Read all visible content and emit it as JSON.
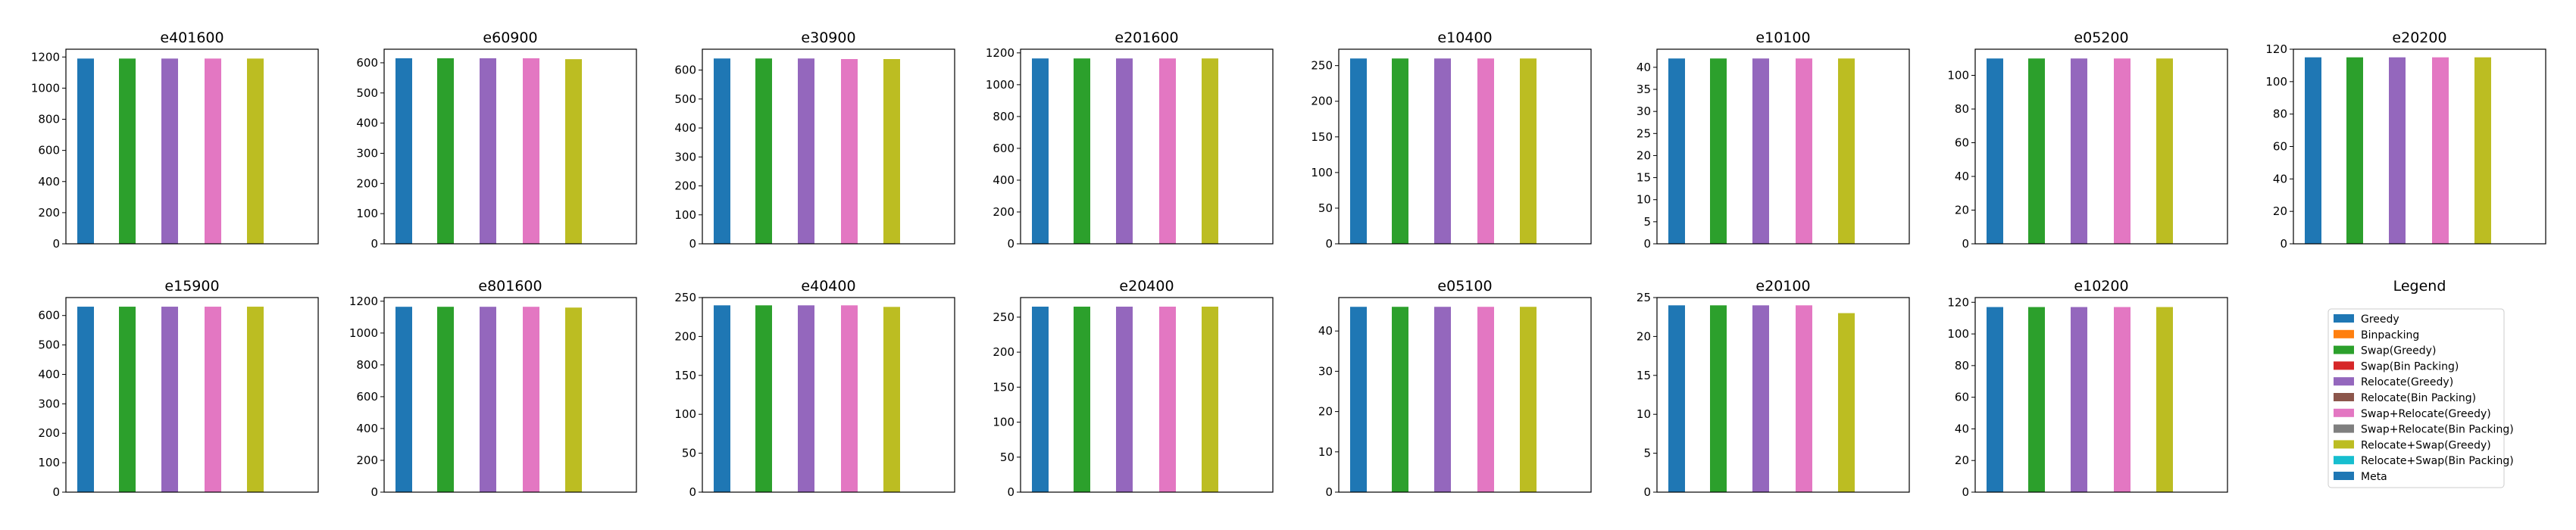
{
  "colors": {
    "Greedy": "#1f77b4",
    "Binpacking": "#ff7f0e",
    "Swap(Greedy)": "#2ca02c",
    "Swap(Bin Packing)": "#d62728",
    "Relocate(Greedy)": "#9467bd",
    "Relocate(Bin Packing)": "#8c564b",
    "Swap+Relocate(Greedy)": "#e377c2",
    "Swap+Relocate(Bin Packing)": "#7f7f7f",
    "Relocate+Swap(Greedy)": "#bcbd22",
    "Relocate+Swap(Bin Packing)": "#17becf",
    "Meta": "#1f77b4"
  },
  "legend": {
    "title": "Legend",
    "entries": [
      "Greedy",
      "Binpacking",
      "Swap(Greedy)",
      "Swap(Bin Packing)",
      "Relocate(Greedy)",
      "Relocate(Bin Packing)",
      "Swap+Relocate(Greedy)",
      "Swap+Relocate(Bin Packing)",
      "Relocate+Swap(Greedy)",
      "Relocate+Swap(Bin Packing)",
      "Meta"
    ]
  },
  "chart_data": [
    {
      "type": "bar",
      "title": "e401600",
      "categories": [
        "Greedy",
        "Swap(Greedy)",
        "Relocate(Greedy)",
        "Swap+Relocate(Greedy)",
        "Relocate+Swap(Greedy)"
      ],
      "values": [
        1190,
        1190,
        1190,
        1190,
        1190
      ],
      "ylim": [
        0,
        1250
      ],
      "yticks": [
        0,
        200,
        400,
        600,
        800,
        1000,
        1200
      ]
    },
    {
      "type": "bar",
      "title": "e60900",
      "categories": [
        "Greedy",
        "Swap(Greedy)",
        "Relocate(Greedy)",
        "Swap+Relocate(Greedy)",
        "Relocate+Swap(Greedy)"
      ],
      "values": [
        615,
        615,
        615,
        615,
        612
      ],
      "ylim": [
        0,
        645
      ],
      "yticks": [
        0,
        100,
        200,
        300,
        400,
        500,
        600
      ]
    },
    {
      "type": "bar",
      "title": "e30900",
      "categories": [
        "Greedy",
        "Swap(Greedy)",
        "Relocate(Greedy)",
        "Swap+Relocate(Greedy)",
        "Relocate+Swap(Greedy)"
      ],
      "values": [
        640,
        640,
        640,
        638,
        638
      ],
      "ylim": [
        0,
        672
      ],
      "yticks": [
        0,
        100,
        200,
        300,
        400,
        500,
        600
      ]
    },
    {
      "type": "bar",
      "title": "e201600",
      "categories": [
        "Greedy",
        "Swap(Greedy)",
        "Relocate(Greedy)",
        "Swap+Relocate(Greedy)",
        "Relocate+Swap(Greedy)"
      ],
      "values": [
        1165,
        1165,
        1165,
        1165,
        1165
      ],
      "ylim": [
        0,
        1223
      ],
      "yticks": [
        0,
        200,
        400,
        600,
        800,
        1000,
        1200
      ]
    },
    {
      "type": "bar",
      "title": "e10400",
      "categories": [
        "Greedy",
        "Swap(Greedy)",
        "Relocate(Greedy)",
        "Swap+Relocate(Greedy)",
        "Relocate+Swap(Greedy)"
      ],
      "values": [
        260,
        260,
        260,
        260,
        260
      ],
      "ylim": [
        0,
        273
      ],
      "yticks": [
        0,
        50,
        100,
        150,
        200,
        250
      ]
    },
    {
      "type": "bar",
      "title": "e10100",
      "categories": [
        "Greedy",
        "Swap(Greedy)",
        "Relocate(Greedy)",
        "Swap+Relocate(Greedy)",
        "Relocate+Swap(Greedy)"
      ],
      "values": [
        42,
        42,
        42,
        42,
        42
      ],
      "ylim": [
        0,
        44.1
      ],
      "yticks": [
        0,
        5,
        10,
        15,
        20,
        25,
        30,
        35,
        40
      ]
    },
    {
      "type": "bar",
      "title": "e05200",
      "categories": [
        "Greedy",
        "Swap(Greedy)",
        "Relocate(Greedy)",
        "Swap+Relocate(Greedy)",
        "Relocate+Swap(Greedy)"
      ],
      "values": [
        110,
        110,
        110,
        110,
        110
      ],
      "ylim": [
        0,
        115.5
      ],
      "yticks": [
        0,
        20,
        40,
        60,
        80,
        100
      ]
    },
    {
      "type": "bar",
      "title": "e20200",
      "categories": [
        "Greedy",
        "Swap(Greedy)",
        "Relocate(Greedy)",
        "Swap+Relocate(Greedy)",
        "Relocate+Swap(Greedy)"
      ],
      "values": [
        115,
        115,
        115,
        115,
        115
      ],
      "ylim": [
        0,
        120
      ],
      "yticks": [
        0,
        20,
        40,
        60,
        80,
        100,
        120
      ]
    },
    {
      "type": "bar",
      "title": "e15900",
      "categories": [
        "Greedy",
        "Swap(Greedy)",
        "Relocate(Greedy)",
        "Swap+Relocate(Greedy)",
        "Relocate+Swap(Greedy)"
      ],
      "values": [
        630,
        630,
        630,
        630,
        630
      ],
      "ylim": [
        0,
        661
      ],
      "yticks": [
        0,
        100,
        200,
        300,
        400,
        500,
        600
      ]
    },
    {
      "type": "bar",
      "title": "e801600",
      "categories": [
        "Greedy",
        "Swap(Greedy)",
        "Relocate(Greedy)",
        "Swap+Relocate(Greedy)",
        "Relocate+Swap(Greedy)"
      ],
      "values": [
        1165,
        1165,
        1165,
        1165,
        1160
      ],
      "ylim": [
        0,
        1223
      ],
      "yticks": [
        0,
        200,
        400,
        600,
        800,
        1000,
        1200
      ]
    },
    {
      "type": "bar",
      "title": "e40400",
      "categories": [
        "Greedy",
        "Swap(Greedy)",
        "Relocate(Greedy)",
        "Swap+Relocate(Greedy)",
        "Relocate+Swap(Greedy)"
      ],
      "values": [
        240,
        240,
        240,
        240,
        238
      ],
      "ylim": [
        0,
        250
      ],
      "yticks": [
        0,
        50,
        100,
        150,
        200,
        250
      ]
    },
    {
      "type": "bar",
      "title": "e20400",
      "categories": [
        "Greedy",
        "Swap(Greedy)",
        "Relocate(Greedy)",
        "Swap+Relocate(Greedy)",
        "Relocate+Swap(Greedy)"
      ],
      "values": [
        265,
        265,
        265,
        265,
        265
      ],
      "ylim": [
        0,
        278
      ],
      "yticks": [
        0,
        50,
        100,
        150,
        200,
        250
      ]
    },
    {
      "type": "bar",
      "title": "e05100",
      "categories": [
        "Greedy",
        "Swap(Greedy)",
        "Relocate(Greedy)",
        "Swap+Relocate(Greedy)",
        "Relocate+Swap(Greedy)"
      ],
      "values": [
        46,
        46,
        46,
        46,
        46
      ],
      "ylim": [
        0,
        48.3
      ],
      "yticks": [
        0,
        10,
        20,
        30,
        40
      ]
    },
    {
      "type": "bar",
      "title": "e20100",
      "categories": [
        "Greedy",
        "Swap(Greedy)",
        "Relocate(Greedy)",
        "Swap+Relocate(Greedy)",
        "Relocate+Swap(Greedy)"
      ],
      "values": [
        24,
        24,
        24,
        24,
        23
      ],
      "ylim": [
        0,
        25
      ],
      "yticks": [
        0,
        5,
        10,
        15,
        20,
        25
      ]
    },
    {
      "type": "bar",
      "title": "e10200",
      "categories": [
        "Greedy",
        "Swap(Greedy)",
        "Relocate(Greedy)",
        "Swap+Relocate(Greedy)",
        "Relocate+Swap(Greedy)"
      ],
      "values": [
        117,
        117,
        117,
        117,
        117
      ],
      "ylim": [
        0,
        123
      ],
      "yticks": [
        0,
        20,
        40,
        60,
        80,
        100,
        120
      ]
    }
  ]
}
